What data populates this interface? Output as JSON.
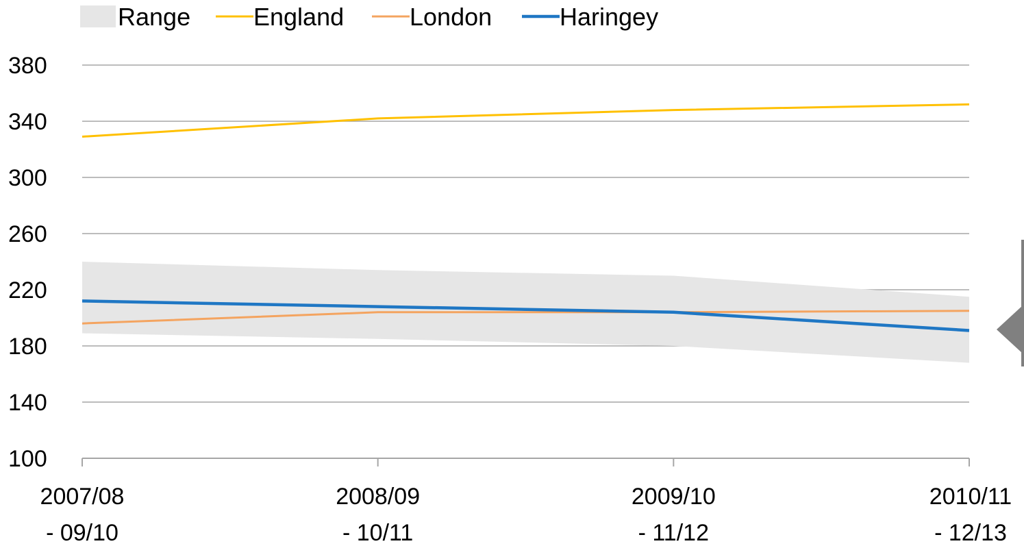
{
  "chart_data": {
    "type": "line",
    "categories": [
      [
        "2007/08",
        "- 09/10"
      ],
      [
        "2008/09",
        "- 10/11"
      ],
      [
        "2009/10",
        "- 11/12"
      ],
      [
        "2010/11",
        "- 12/13"
      ]
    ],
    "series": [
      {
        "name": "England",
        "values": [
          329,
          342,
          348,
          352
        ],
        "color": "#ffc000"
      },
      {
        "name": "London",
        "values": [
          196,
          204,
          204,
          205
        ],
        "color": "#f4a460"
      },
      {
        "name": "Haringey",
        "values": [
          212,
          208,
          204,
          191
        ],
        "color": "#1f77c4"
      }
    ],
    "range": {
      "name": "Range",
      "upper": [
        240,
        234,
        230,
        215
      ],
      "lower": [
        189,
        185,
        180,
        168
      ],
      "color": "#e6e6e6"
    },
    "ylim": [
      100,
      380
    ],
    "yticks": [
      "100",
      "140",
      "180",
      "220",
      "260",
      "300",
      "340",
      "380"
    ],
    "grid": true,
    "legend_position": "top-left",
    "title": "",
    "xlabel": "",
    "ylabel": ""
  }
}
